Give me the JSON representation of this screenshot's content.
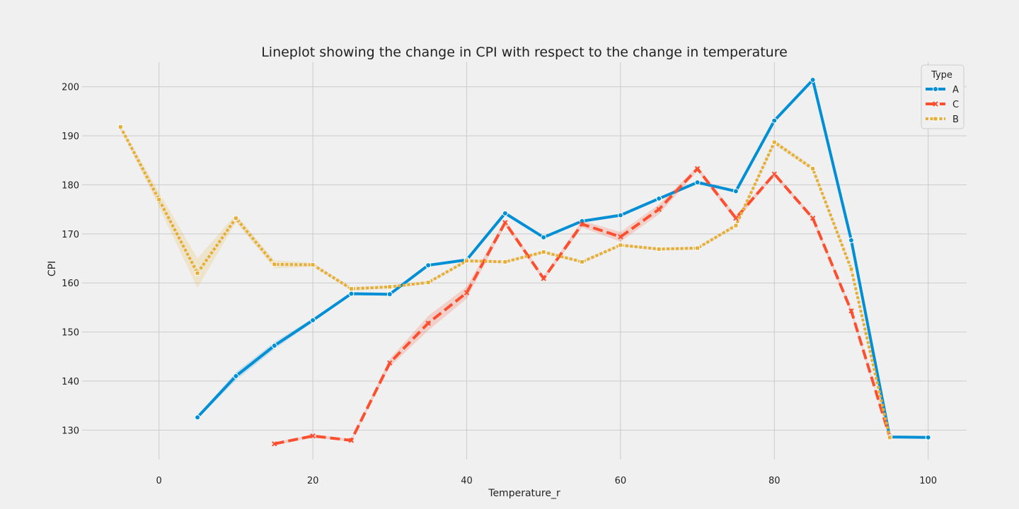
{
  "chart_data": {
    "type": "line",
    "title": "Lineplot showing the change in CPI with respect to the change in temperature",
    "xlabel": "Temperature_r",
    "ylabel": "CPI",
    "xlim": [
      -10,
      105
    ],
    "ylim": [
      124,
      205
    ],
    "xticks": [
      0,
      20,
      40,
      60,
      80,
      100
    ],
    "yticks": [
      130,
      140,
      150,
      160,
      170,
      180,
      190,
      200
    ],
    "grid": true,
    "legend": {
      "title": "Type",
      "placement": "top-right"
    },
    "series": [
      {
        "name": "A",
        "color": "#008fd5",
        "dash": "solid",
        "marker": "circle",
        "x": [
          5,
          10,
          15,
          20,
          25,
          30,
          35,
          40,
          45,
          50,
          55,
          60,
          65,
          70,
          75,
          80,
          85,
          90,
          95,
          100
        ],
        "y": [
          132.6,
          141.0,
          147.2,
          152.4,
          157.8,
          157.7,
          163.6,
          164.7,
          174.2,
          169.3,
          172.6,
          173.8,
          177.2,
          180.5,
          178.7,
          193.1,
          201.4,
          168.7,
          128.6,
          128.5
        ],
        "ci": [
          0.3,
          0.8,
          0.7,
          0.4,
          0.3,
          0.3,
          0.3,
          0.3,
          0.4,
          0.3,
          0.3,
          0.3,
          0.3,
          0.3,
          0.3,
          0.4,
          0.3,
          0.4,
          0.2,
          0.2
        ]
      },
      {
        "name": "C",
        "color": "#fc4f30",
        "dash": "dashed",
        "marker": "x",
        "x": [
          15,
          20,
          25,
          30,
          35,
          40,
          45,
          50,
          55,
          60,
          65,
          70,
          75,
          80,
          85,
          90,
          95
        ],
        "y": [
          127.2,
          128.8,
          127.9,
          143.7,
          151.8,
          158.0,
          172.3,
          160.9,
          172.0,
          169.4,
          175.0,
          183.3,
          173.2,
          182.2,
          173.2,
          154.3,
          128.6
        ],
        "ci": [
          0.3,
          0.3,
          0.3,
          0.8,
          1.5,
          1.2,
          0.6,
          0.5,
          0.7,
          1.0,
          1.0,
          0.5,
          0.6,
          0.4,
          0.5,
          0.5,
          0.3
        ]
      },
      {
        "name": "B",
        "color": "#e5ae38",
        "dash": "dotted",
        "marker": "square",
        "x": [
          -5,
          0,
          5,
          10,
          15,
          20,
          25,
          30,
          35,
          40,
          45,
          50,
          55,
          60,
          65,
          70,
          75,
          80,
          85,
          90,
          95
        ],
        "y": [
          191.8,
          177.0,
          162.0,
          173.2,
          163.8,
          163.7,
          158.8,
          159.2,
          160.1,
          164.5,
          164.3,
          166.3,
          164.3,
          167.7,
          166.9,
          167.1,
          171.7,
          188.7,
          183.3,
          162.8,
          128.5
        ],
        "ci": [
          0.3,
          1.5,
          3.0,
          0.8,
          0.8,
          0.4,
          0.4,
          0.3,
          0.3,
          0.3,
          0.3,
          0.3,
          0.3,
          0.3,
          0.3,
          0.3,
          0.4,
          0.5,
          0.4,
          0.4,
          0.2
        ]
      }
    ]
  }
}
